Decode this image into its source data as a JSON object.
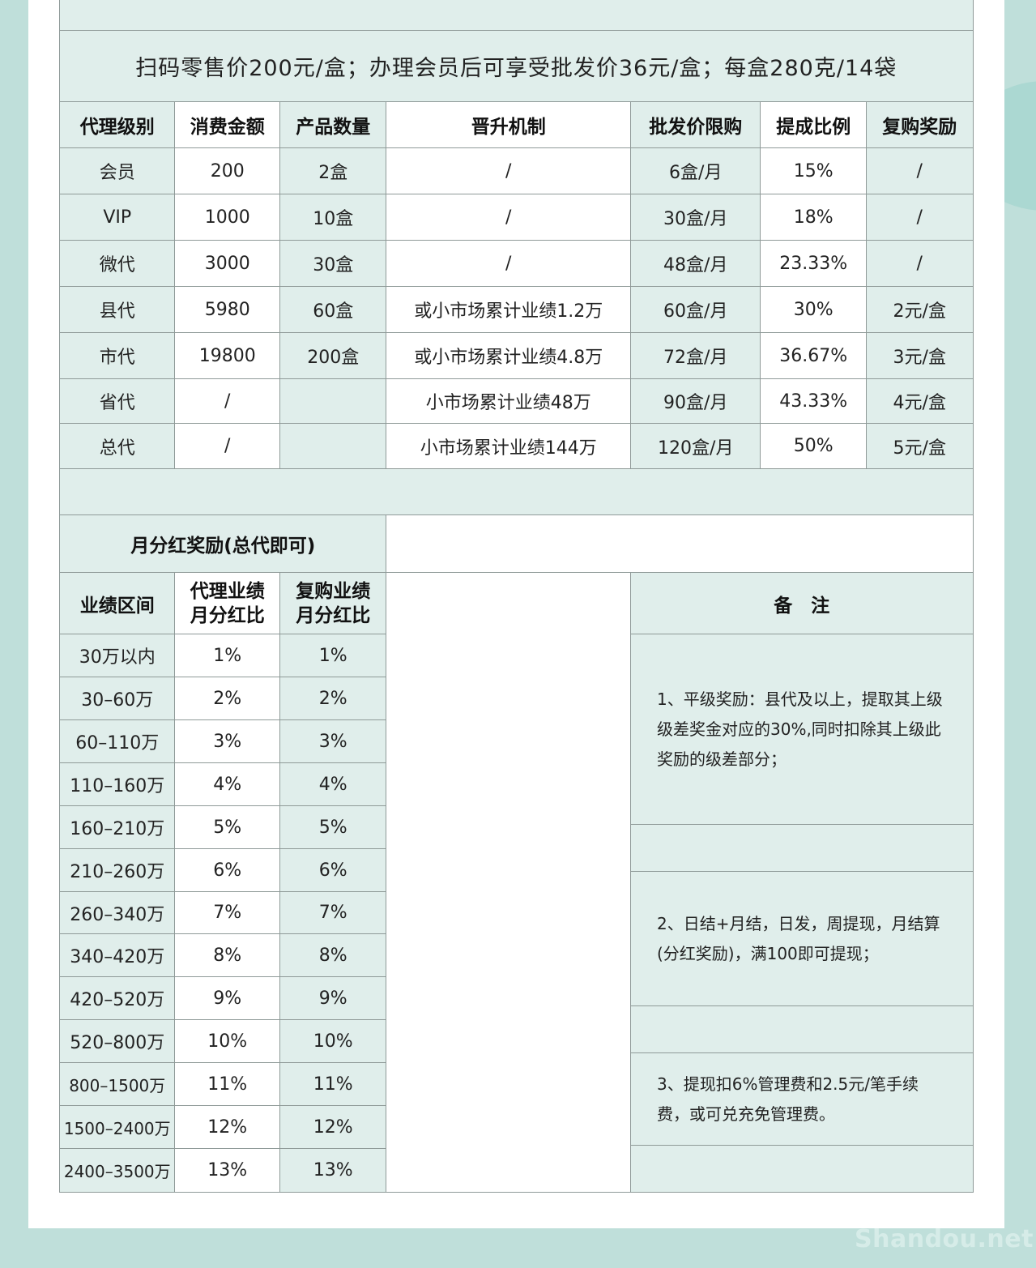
{
  "title_line": "扫码零售价200元/盒；办理会员后可享受批发价36元/盒；每盒280克/14袋",
  "agent_table": {
    "headers": [
      "代理级别",
      "消费金额",
      "产品数量",
      "晋升机制",
      "批发价限购",
      "提成比例",
      "复购奖励"
    ],
    "rows": [
      [
        "会员",
        "200",
        "2盒",
        "/",
        "6盒/月",
        "15%",
        "/"
      ],
      [
        "VIP",
        "1000",
        "10盒",
        "/",
        "30盒/月",
        "18%",
        "/"
      ],
      [
        "微代",
        "3000",
        "30盒",
        "/",
        "48盒/月",
        "23.33%",
        "/"
      ],
      [
        "县代",
        "5980",
        "60盒",
        "或小市场累计业绩1.2万",
        "60盒/月",
        "30%",
        "2元/盒"
      ],
      [
        "市代",
        "19800",
        "200盒",
        "或小市场累计业绩4.8万",
        "72盒/月",
        "36.67%",
        "3元/盒"
      ],
      [
        "省代",
        "/",
        "",
        "小市场累计业绩48万",
        "90盒/月",
        "43.33%",
        "4元/盒"
      ],
      [
        "总代",
        "/",
        "",
        "小市场累计业绩144万",
        "120盒/月",
        "50%",
        "5元/盒"
      ]
    ]
  },
  "bonus_table": {
    "title": "月分红奖励(总代即可)",
    "headers": [
      "业绩区间",
      "代理业绩\n月分红比",
      "复购业绩\n月分红比"
    ],
    "header_lines": {
      "col2_line1": "代理业绩",
      "col2_line2": "月分红比",
      "col3_line1": "复购业绩",
      "col3_line2": "月分红比"
    },
    "rows": [
      [
        "30万以内",
        "1%",
        "1%"
      ],
      [
        "30–60万",
        "2%",
        "2%"
      ],
      [
        "60–110万",
        "3%",
        "3%"
      ],
      [
        "110–160万",
        "4%",
        "4%"
      ],
      [
        "160–210万",
        "5%",
        "5%"
      ],
      [
        "210–260万",
        "6%",
        "6%"
      ],
      [
        "260–340万",
        "7%",
        "7%"
      ],
      [
        "340–420万",
        "8%",
        "8%"
      ],
      [
        "420–520万",
        "9%",
        "9%"
      ],
      [
        "520–800万",
        "10%",
        "10%"
      ],
      [
        "800–1500万",
        "11%",
        "11%"
      ],
      [
        "1500–2400万",
        "12%",
        "12%"
      ],
      [
        "2400–3500万",
        "13%",
        "13%"
      ]
    ]
  },
  "notes": {
    "title": "备　注",
    "items": [
      "1、平级奖励：县代及以上，提取其上级级差奖金对应的30%,同时扣除其上级此奖励的级差部分；",
      "2、日结+月结，日发，周提现，月结算(分红奖励)，满100即可提现；",
      "3、提现扣6%管理费和2.5元/笔手续费，或可兑充免管理费。"
    ]
  },
  "watermark": "Shandou.net",
  "colors": {
    "background": "#bfdfda",
    "panel": "#ffffff",
    "cell_tint": "#e0eeeb",
    "border": "#8f9a98"
  }
}
